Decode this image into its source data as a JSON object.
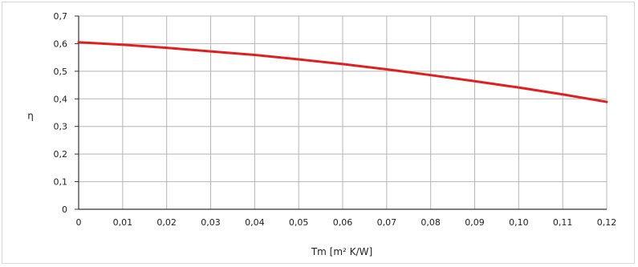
{
  "chart_data": {
    "type": "line",
    "title": "",
    "xlabel": "Tm [m² K/W]",
    "ylabel": "η",
    "xlim": [
      0,
      0.12
    ],
    "ylim": [
      0,
      0.7
    ],
    "xticks": [
      0,
      0.01,
      0.02,
      0.03,
      0.04,
      0.05,
      0.06,
      0.07,
      0.08,
      0.09,
      0.1,
      0.11,
      0.12
    ],
    "xtick_labels": [
      "0",
      "0,01",
      "0,02",
      "0,03",
      "0,04",
      "0,05",
      "0,06",
      "0,07",
      "0,08",
      "0,09",
      "0,10",
      "0,11",
      "0,12"
    ],
    "yticks": [
      0,
      0.1,
      0.2,
      0.3,
      0.4,
      0.5,
      0.6,
      0.7
    ],
    "ytick_labels": [
      "0",
      "0,1",
      "0,2",
      "0,3",
      "0,4",
      "0,5",
      "0,6",
      "0,7"
    ],
    "grid": true,
    "series": [
      {
        "color": "#e02020",
        "x": [
          0,
          0.01,
          0.02,
          0.03,
          0.04,
          0.05,
          0.06,
          0.07,
          0.08,
          0.09,
          0.1,
          0.11,
          0.12
        ],
        "y": [
          0.605,
          0.596,
          0.585,
          0.572,
          0.559,
          0.543,
          0.526,
          0.507,
          0.486,
          0.464,
          0.441,
          0.416,
          0.389
        ]
      }
    ]
  },
  "colors": {
    "grid": "#b5b5b5",
    "axis": "#333333",
    "frame": "#d7d7d7"
  }
}
